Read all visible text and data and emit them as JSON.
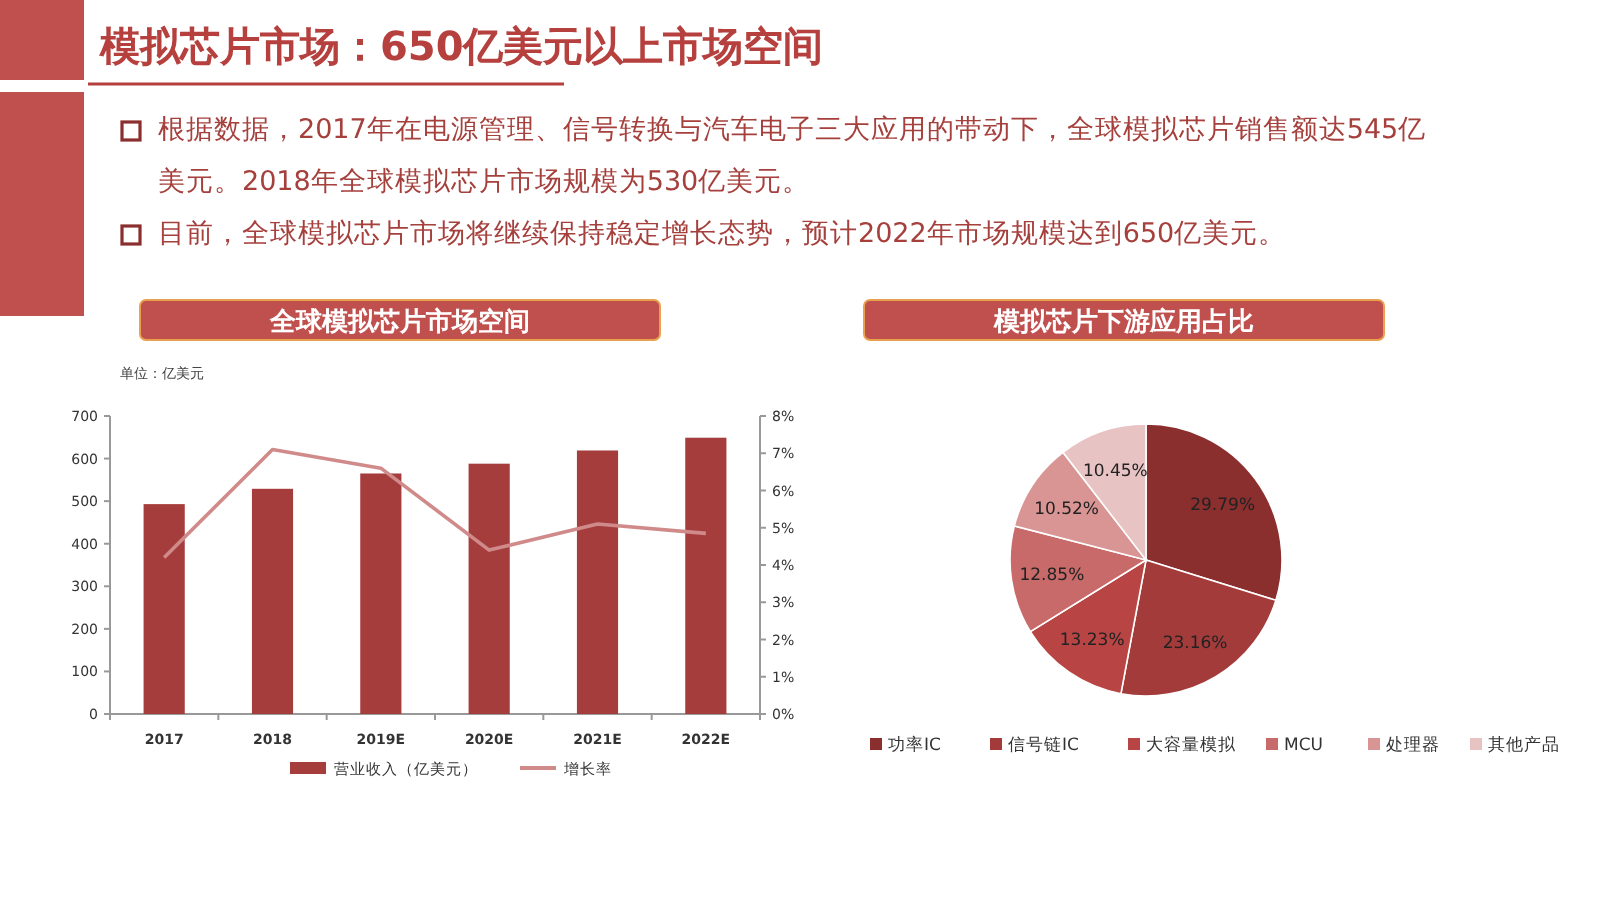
{
  "chart_data": [
    {
      "type": "other",
      "title": "模拟芯片市场：650亿美元以上市场空间",
      "annotations": [
        "根据数据，2017年在电源管理、信号转换与汽车电子三大应用的带动下，全球模拟芯片销售额达545亿美元。2018年全球模拟芯片市场规模为530亿美元。",
        "目前，全球模拟芯片市场将继续保持稳定增长态势，预计2022年市场规模达到650亿美元。"
      ]
    },
    {
      "type": "bar",
      "title": "全球模拟芯片市场空间",
      "annotations": [
        "单位：亿美元"
      ],
      "categories": [
        "2017",
        "2018",
        "2019E",
        "2020E",
        "2021E",
        "2022E"
      ],
      "series": [
        {
          "name": "营业收入（亿美元）",
          "type": "bar",
          "color": "#a63d3d",
          "values": [
            493,
            529,
            565,
            588,
            619,
            649
          ]
        },
        {
          "name": "增长率",
          "type": "line",
          "axis": "y2",
          "color": "#d08a8a",
          "values": [
            4.2,
            7.1,
            6.6,
            4.4,
            5.1,
            4.85
          ]
        }
      ],
      "ylim": [
        0,
        700
      ],
      "yticks": [
        0,
        100,
        200,
        300,
        400,
        500,
        600,
        700
      ],
      "y2lim": [
        0,
        8
      ],
      "y2ticks": [
        {
          "value": 0,
          "label": "0%"
        },
        {
          "value": 1,
          "label": "1%"
        },
        {
          "value": 2,
          "label": "2%"
        },
        {
          "value": 3,
          "label": "3%"
        },
        {
          "value": 4,
          "label": "4%"
        },
        {
          "value": 5,
          "label": "5%"
        },
        {
          "value": 6,
          "label": "6%"
        },
        {
          "value": 7,
          "label": "7%"
        },
        {
          "value": 8,
          "label": "8%"
        }
      ],
      "legend": "bottom"
    },
    {
      "type": "pie",
      "title": "模拟芯片下游应用占比",
      "categories": [
        "功率IC",
        "信号链IC",
        "大容量模拟",
        "MCU",
        "处理器",
        "其他产品"
      ],
      "values": [
        29.79,
        23.16,
        13.23,
        12.85,
        10.52,
        10.45
      ],
      "value_labels": [
        "29.79%",
        "23.16%",
        "13.23%",
        "12.85%",
        "10.52%",
        "10.45%"
      ],
      "colors": [
        "#8b2e2e",
        "#a33b3b",
        "#b84444",
        "#c86a6a",
        "#d99494",
        "#e8c3c3"
      ],
      "legend": "bottom"
    }
  ]
}
